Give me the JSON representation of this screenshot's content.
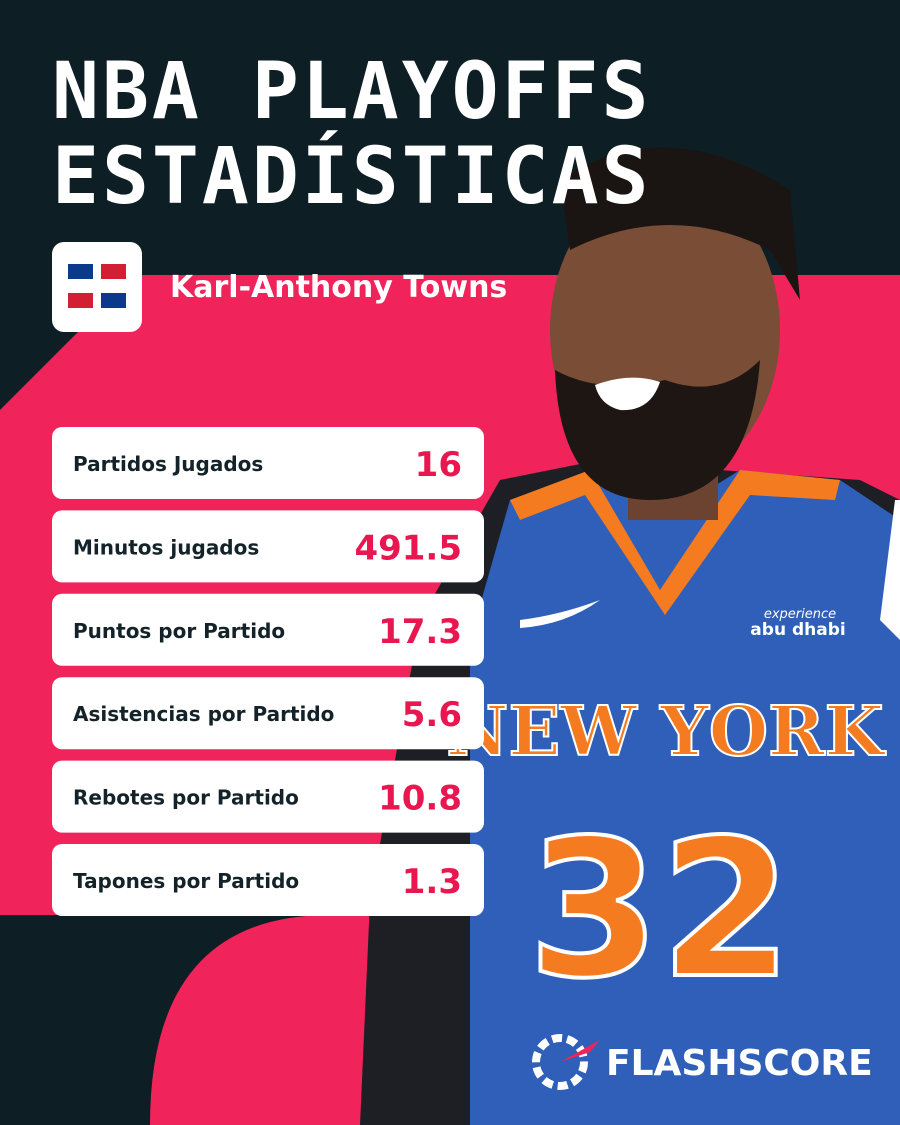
{
  "header": {
    "title_lines": [
      "NBA PLAYOFFS",
      "ESTADÍSTICAS"
    ]
  },
  "player": {
    "name": "Karl-Anthony Towns"
  },
  "stats": [
    {
      "label": "Partidos Jugados",
      "value": 16
    },
    {
      "label": "Minutos jugados",
      "value": 491.5
    },
    {
      "label": "Puntos por Partido",
      "value": 17.3
    },
    {
      "label": "Asistencias por Partido",
      "value": 5.6
    },
    {
      "label": "Rebotes por Partido",
      "value": 10.8
    },
    {
      "label": "Tapones por Partido",
      "value": 1.3
    }
  ],
  "photo": {
    "sponsor_top": "experience",
    "sponsor": "abu dhabi",
    "team": "NEW YORK",
    "number": "32"
  },
  "brand": "FLASHSCORE"
}
